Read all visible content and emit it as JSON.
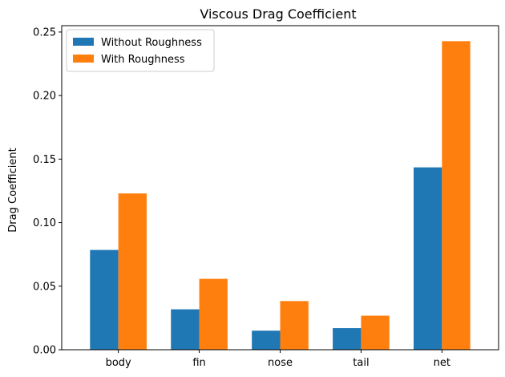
{
  "chart_data": {
    "type": "bar",
    "title": "Viscous Drag Coefficient",
    "xlabel": "",
    "ylabel": "Drag Coefficient",
    "categories": [
      "body",
      "fin",
      "nose",
      "tail",
      "net"
    ],
    "series": [
      {
        "name": "Without Roughness",
        "color": "#1f77b4",
        "values": [
          0.0785,
          0.0318,
          0.015,
          0.017,
          0.1435
        ]
      },
      {
        "name": "With Roughness",
        "color": "#ff7f0e",
        "values": [
          0.123,
          0.0558,
          0.0383,
          0.0268,
          0.2428
        ]
      }
    ],
    "ylim": [
      0,
      0.255
    ],
    "yticks": [
      0.0,
      0.05,
      0.1,
      0.15,
      0.2,
      0.25
    ],
    "ytick_labels": [
      "0.00",
      "0.05",
      "0.10",
      "0.15",
      "0.20",
      "0.25"
    ],
    "grid": false,
    "legend_position": "top-left"
  }
}
